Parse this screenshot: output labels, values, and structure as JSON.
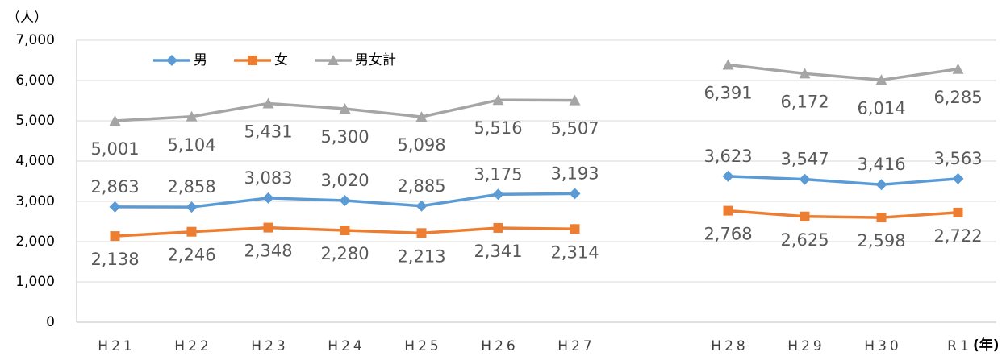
{
  "chart_data": {
    "type": "line",
    "y_unit": "（人）",
    "x_unit": "(年)",
    "categories": [
      "H21",
      "H22",
      "H23",
      "H24",
      "H25",
      "H26",
      "H27",
      null,
      "H28",
      "H29",
      "H30",
      "R1"
    ],
    "series": [
      {
        "name": "男",
        "color": "#5b9bd5",
        "marker": "diamond",
        "values": [
          2863,
          2858,
          3083,
          3020,
          2885,
          3175,
          3193,
          null,
          3623,
          3547,
          3416,
          3563
        ],
        "value_labels": [
          "2,863",
          "2,858",
          "3,083",
          "3,020",
          "2,885",
          "3,175",
          "3,193",
          null,
          "3,623",
          "3,547",
          "3,416",
          "3,563"
        ]
      },
      {
        "name": "女",
        "color": "#ed7d31",
        "marker": "square",
        "values": [
          2138,
          2246,
          2348,
          2280,
          2213,
          2341,
          2314,
          null,
          2768,
          2625,
          2598,
          2722
        ],
        "value_labels": [
          "2,138",
          "2,246",
          "2,348",
          "2,280",
          "2,213",
          "2,341",
          "2,314",
          null,
          "2,768",
          "2,625",
          "2,598",
          "2,722"
        ]
      },
      {
        "name": "男女計",
        "color": "#a5a5a5",
        "marker": "triangle",
        "values": [
          5001,
          5104,
          5431,
          5300,
          5098,
          5516,
          5507,
          null,
          6391,
          6172,
          6014,
          6285
        ],
        "value_labels": [
          "5,001",
          "5,104",
          "5,431",
          "5,300",
          "5,098",
          "5,516",
          "5,507",
          null,
          "6,391",
          "6,172",
          "6,014",
          "6,285"
        ]
      }
    ],
    "ylim": [
      0,
      7000
    ],
    "yticks": [
      0,
      {
        "value": 1000,
        "label": "1,000"
      },
      {
        "value": 2000,
        "label": "2,000"
      },
      {
        "value": 3000,
        "label": "3,000"
      },
      {
        "value": 4000,
        "label": "4,000"
      },
      {
        "value": 5000,
        "label": "5,000"
      },
      {
        "value": 6000,
        "label": "6,000"
      },
      {
        "value": 7000,
        "label": "7,000"
      }
    ],
    "grid": true,
    "legend": "top-left"
  }
}
